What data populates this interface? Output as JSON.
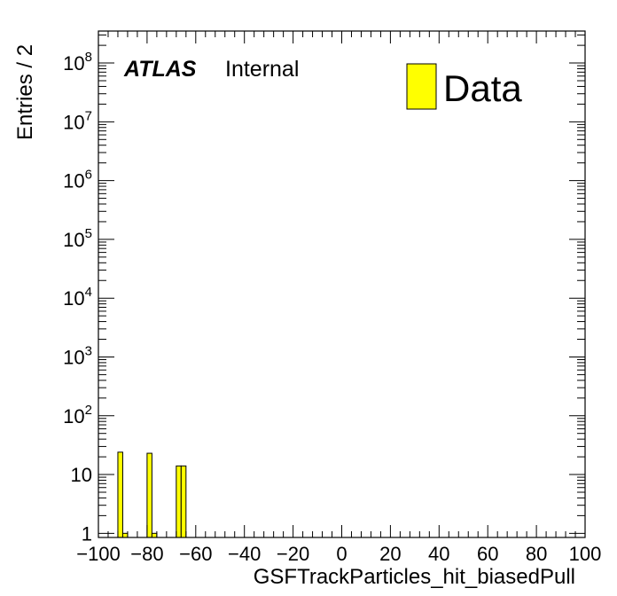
{
  "chart_data": {
    "type": "bar",
    "title": "",
    "xlabel": "GSFTrackParticles_hit_biasedPull",
    "ylabel": "Entries / 2",
    "xlim": [
      -100,
      100
    ],
    "ylim": [
      0.85,
      350000000
    ],
    "yscale": "log",
    "bin_width": 2,
    "x_ticks": [
      "−100",
      "−80",
      "−60",
      "−40",
      "−20",
      "0",
      "20",
      "40",
      "60",
      "80",
      "100"
    ],
    "y_ticks": [
      "1",
      "10",
      "10^2",
      "10^3",
      "10^4",
      "10^5",
      "10^6",
      "10^7",
      "10^8"
    ],
    "fill_color": "#ffff00",
    "line_color": "#000000",
    "grid": false,
    "legend_position": "top-right",
    "series": [
      {
        "name": "Data",
        "bin_low_edges": [
          -100,
          -98,
          -96,
          -94,
          -92,
          -90,
          -88,
          -86,
          -84,
          -82,
          -80,
          -78,
          -76,
          -74,
          -72,
          -70,
          -68,
          -66,
          -64,
          -62,
          -60,
          -58,
          -56,
          -54,
          -52,
          -50,
          -48,
          -46,
          -44,
          -42,
          -40,
          -38,
          -36,
          -34,
          -32,
          -30,
          -28,
          -26,
          -24,
          -22,
          -20,
          -18,
          -16,
          -14,
          -12,
          -10,
          -8,
          -6,
          -4,
          -2,
          0,
          2,
          4,
          6,
          8,
          10,
          12,
          14,
          16,
          18,
          20,
          22,
          24,
          26,
          28,
          30,
          32,
          34,
          36,
          38,
          40,
          42,
          44,
          46,
          48,
          50,
          52,
          54,
          56,
          58,
          60,
          62,
          64,
          66,
          68,
          70,
          72,
          74,
          76,
          78,
          80,
          82,
          84,
          86,
          88,
          90,
          92,
          94,
          96,
          98
        ],
        "values": [
          0,
          0,
          0,
          0,
          24,
          1,
          0,
          0,
          0,
          0,
          23,
          1,
          0,
          0,
          0,
          0,
          14,
          14,
          0,
          0,
          0,
          0,
          0,
          0,
          0,
          0,
          0,
          0,
          0,
          0,
          0,
          0,
          0,
          0,
          0,
          0,
          0,
          0,
          0,
          0,
          0,
          0,
          0,
          0,
          0,
          0,
          0,
          0,
          0,
          0,
          0,
          0,
          0,
          0,
          0,
          0,
          0,
          0,
          0,
          0,
          0,
          0,
          0,
          0,
          0,
          0,
          0,
          0,
          0,
          0,
          0,
          0,
          0,
          0,
          0,
          0,
          0,
          0,
          0,
          0,
          0,
          0,
          0,
          0,
          0,
          0,
          0,
          0,
          0,
          0,
          0,
          0,
          0,
          0,
          0,
          0,
          0,
          0,
          0,
          0
        ]
      }
    ]
  },
  "annotations": {
    "experiment": "ATLAS",
    "status": "Internal"
  },
  "legend": {
    "entry": "Data"
  }
}
